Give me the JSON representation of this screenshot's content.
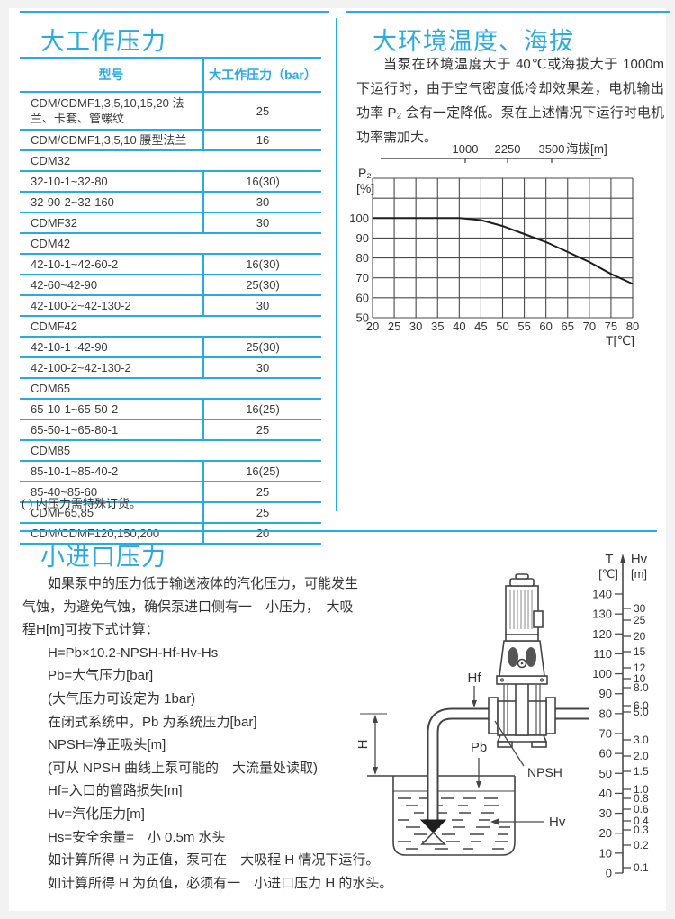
{
  "accent_color": "#29abe2",
  "max_working_pressure": {
    "title": "大工作压力",
    "table": {
      "headers": [
        "型号",
        "大工作压力（bar）"
      ],
      "rows": [
        {
          "model": "CDM/CDMF1,3,5,10,15,20 法兰、卡套、管螺纹",
          "pressure": "25"
        },
        {
          "model": "CDM/CDMF1,3,5,10 腰型法兰",
          "pressure": "16"
        },
        {
          "model": "CDM32",
          "group": true
        },
        {
          "model": "32-10-1~32-80",
          "pressure": "16(30)"
        },
        {
          "model": "32-90-2~32-160",
          "pressure": "30"
        },
        {
          "model": "CDMF32",
          "pressure": "30"
        },
        {
          "model": "CDM42",
          "group": true
        },
        {
          "model": "42-10-1~42-60-2",
          "pressure": "16(30)"
        },
        {
          "model": "42-60~42-90",
          "pressure": "25(30)"
        },
        {
          "model": "42-100-2~42-130-2",
          "pressure": "30"
        },
        {
          "model": "CDMF42",
          "group": true
        },
        {
          "model": "42-10-1~42-90",
          "pressure": "25(30)"
        },
        {
          "model": "42-100-2~42-130-2",
          "pressure": "30"
        },
        {
          "model": "CDM65",
          "group": true
        },
        {
          "model": "65-10-1~65-50-2",
          "pressure": "16(25)"
        },
        {
          "model": "65-50-1~65-80-1",
          "pressure": "25"
        },
        {
          "model": "CDM85",
          "group": true
        },
        {
          "model": "85-10-1~85-40-2",
          "pressure": "16(25)"
        },
        {
          "model": "85-40~85-60",
          "pressure": "25"
        },
        {
          "model": "CDMF65,85",
          "pressure": "25"
        },
        {
          "model": "CDM/CDMF120,150,200",
          "pressure": "20"
        }
      ],
      "footnote": "( ) 内压力需特殊订货。"
    }
  },
  "max_ambient": {
    "title": "大环境温度、海拔",
    "paragraph": "当泵在环境温度大于 40℃或海拔大于 1000m 下运行时，由于空气密度低冷却效果差，电机输出功率 P₂ 会有一定降低。泵在上述情况下运行时电机功率需加大。"
  },
  "min_inlet_pressure": {
    "title": "小进口压力",
    "lines": [
      {
        "text": "如果泵中的压力低于输送液体的汽化压力，可能发生",
        "indent": true
      },
      {
        "text": "气蚀，为避免气蚀，确保泵进口侧有一　小压力，　大吸",
        "indent": false
      },
      {
        "text": "程H[m]可按下式计算：",
        "indent": false
      },
      {
        "text": "H=Pb×10.2-NPSH-Hf-Hv-Hs",
        "indent": true
      },
      {
        "text": "Pb=大气压力[bar]",
        "indent": true
      },
      {
        "text": "(大气压力可设定为 1bar)",
        "indent": true
      },
      {
        "text": "在闭式系统中，Pb 为系统压力[bar]",
        "indent": true
      },
      {
        "text": "NPSH=净正吸头[m]",
        "indent": true
      },
      {
        "text": "(可从 NPSH 曲线上泵可能的　大流量处读取)",
        "indent": true
      },
      {
        "text": "Hf=入口的管路损失[m]",
        "indent": true
      },
      {
        "text": "Hv=汽化压力[m]",
        "indent": true
      },
      {
        "text": "Hs=安全余量=　小 0.5m 水头",
        "indent": true
      },
      {
        "text": "如计算所得 H 为正值，泵可在　大吸程 H 情况下运行。",
        "indent": true
      },
      {
        "text": "如计算所得 H 为负值，必须有一　小进口压力 H 的水头。",
        "indent": true
      }
    ],
    "diagram": {
      "labels": {
        "h": "H",
        "hf": "Hf",
        "pb": "Pb",
        "npsh": "NPSH",
        "hv": "Hv",
        "t_axis": "T",
        "t_unit": "[℃]",
        "hv_axis": "Hv",
        "hv_unit": "[m]"
      }
    }
  },
  "chart_data": [
    {
      "type": "line",
      "title": "",
      "xlabel": "T[℃]",
      "ylabel_line1": "P₂",
      "ylabel_line2": "[%]",
      "xlim": [
        20,
        80
      ],
      "ylim": [
        50,
        120
      ],
      "x_ticks": [
        20,
        25,
        30,
        35,
        40,
        45,
        50,
        55,
        60,
        65,
        70,
        75,
        80
      ],
      "y_tick_labels": [
        50,
        60,
        70,
        80,
        90,
        100
      ],
      "grid": true,
      "legend": "none",
      "top_axis": {
        "label": "海拔[m]",
        "tick_labels": [
          "1000",
          "2250",
          "3500"
        ]
      },
      "series": [
        {
          "name": "P2-derating-curve",
          "x": [
            20,
            40,
            45,
            50,
            55,
            60,
            65,
            70,
            75,
            80
          ],
          "y": [
            100,
            100,
            99,
            96,
            92,
            88,
            83,
            78,
            72,
            67
          ]
        }
      ]
    },
    {
      "type": "table",
      "title": "",
      "left_axis_label": "T [℃]",
      "right_axis_label": "Hv [m]",
      "t_ticks": [
        0,
        10,
        20,
        30,
        40,
        50,
        60,
        70,
        80,
        90,
        100,
        110,
        120,
        130,
        140
      ],
      "hv_ticks": [
        "0.1",
        "0.2",
        "0.3",
        "0.4",
        "0.6",
        "0.8",
        "1.0",
        "1.5",
        "2.0",
        "3.0",
        "5.0",
        "6.0",
        "8.0",
        "10",
        "12",
        "15",
        "20",
        "25",
        "30"
      ]
    }
  ]
}
